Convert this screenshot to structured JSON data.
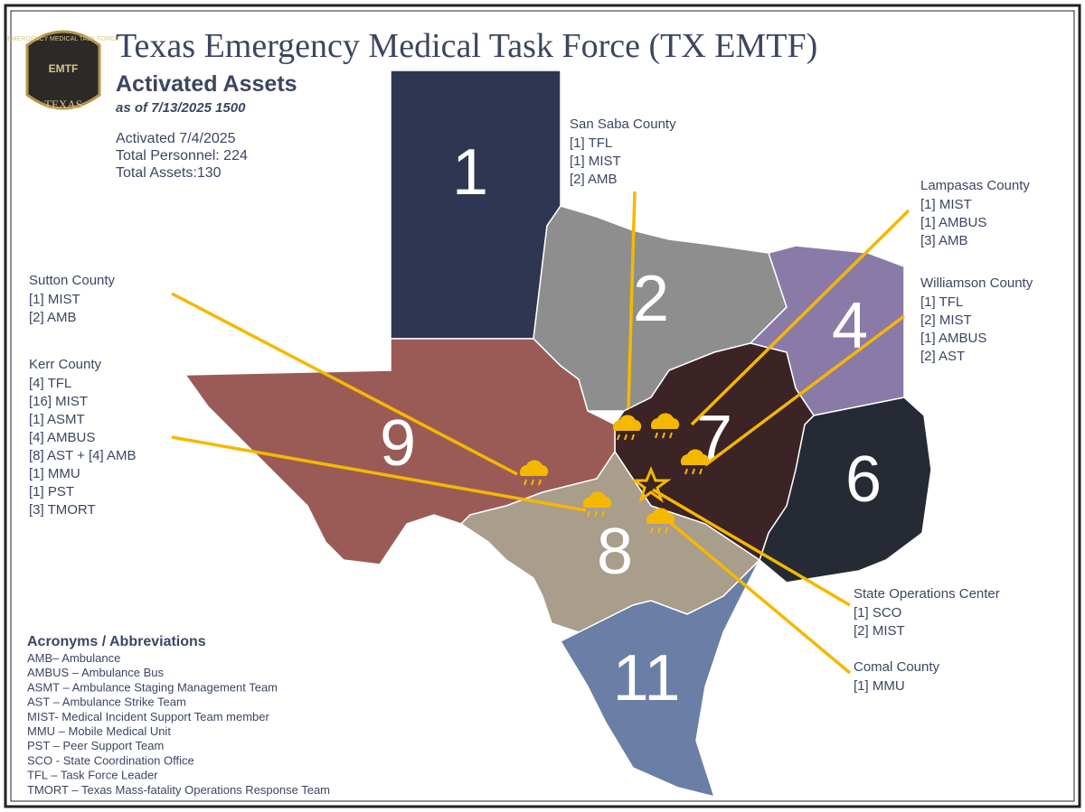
{
  "header": {
    "logo": {
      "top": "EMERGENCY MEDICAL TASK FORCE",
      "mid": "EMTF",
      "bottom": "TEXAS"
    },
    "title": "Texas Emergency Medical Task Force (TX EMTF)",
    "subtitle": "Activated Assets",
    "as_of": "as of 7/13/2025 1500"
  },
  "summary": [
    "Activated 7/4/2025",
    "Total Personnel: 224",
    "Total Assets:130"
  ],
  "regions": [
    "1",
    "2",
    "4",
    "6",
    "7",
    "8",
    "9",
    "11"
  ],
  "callouts": [
    {
      "title": "San Saba County",
      "items": [
        "[1] TFL",
        "[1] MIST",
        "[2] AMB"
      ]
    },
    {
      "title": "Lampasas County",
      "items": [
        "[1] MIST",
        "[1] AMBUS",
        "[3] AMB"
      ]
    },
    {
      "title": "Williamson County",
      "items": [
        "[1] TFL",
        "[2] MIST",
        "[1] AMBUS",
        "[2] AST"
      ]
    },
    {
      "title": "Sutton County",
      "items": [
        "[1] MIST",
        "[2] AMB"
      ]
    },
    {
      "title": "Kerr County",
      "items": [
        "[4] TFL",
        "[16] MIST",
        "[1] ASMT",
        "[4] AMBUS",
        "[8] AST + [4] AMB",
        "[1] MMU",
        "[1] PST",
        "[3] TMORT"
      ]
    },
    {
      "title": "State Operations Center",
      "items": [
        "[1] SCO",
        "[2] MIST"
      ]
    },
    {
      "title": "Comal County",
      "items": [
        "[1] MMU"
      ]
    }
  ],
  "acronyms": {
    "title": "Acronyms / Abbreviations",
    "items": [
      "AMB– Ambulance",
      "AMBUS – Ambulance Bus",
      "ASMT – Ambulance Staging Management Team",
      "AST – Ambulance Strike Team",
      "MIST- Medical Incident Support Team member",
      "MMU – Mobile Medical Unit",
      "PST – Peer Support Team",
      "SCO - State Coordination Office",
      "TFL – Task Force Leader",
      "TMORT – Texas Mass-fatality Operations Response Team"
    ]
  }
}
